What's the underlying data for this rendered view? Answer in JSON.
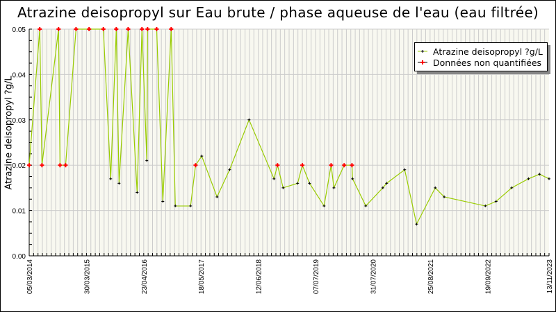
{
  "chart_data": {
    "type": "line",
    "title": "Atrazine deisopropyl sur Eau brute / phase aqueuse de l'eau (eau filtrée)",
    "ylabel": "Atrazine deisopropyl ?g/L",
    "xlabel": "",
    "x_unit": "days since 05/03/2014",
    "xlim": [
      0,
      3540
    ],
    "ylim": [
      0,
      0.05
    ],
    "y_ticks": [
      "0.00",
      "0.01",
      "0.02",
      "0.03",
      "0.04",
      "0.05"
    ],
    "x_ticks": [
      {
        "day": 0,
        "label": "05/03/2014"
      },
      {
        "day": 390,
        "label": "30/03/2015"
      },
      {
        "day": 780,
        "label": "23/04/2016"
      },
      {
        "day": 1170,
        "label": "18/05/2017"
      },
      {
        "day": 1560,
        "label": "12/06/2018"
      },
      {
        "day": 1950,
        "label": "07/07/2019"
      },
      {
        "day": 2340,
        "label": "31/07/2020"
      },
      {
        "day": 2730,
        "label": "25/08/2021"
      },
      {
        "day": 3120,
        "label": "19/09/2022"
      },
      {
        "day": 3540,
        "label": "13/11/2023"
      }
    ],
    "grid": true,
    "legend_position": "top-right",
    "legend": [
      "Atrazine deisopropyl ?g/L",
      "Données non quantifiées"
    ],
    "colors": {
      "line": "#99cc00",
      "quantified": "#000000",
      "non_quantified": "#ff0000",
      "plot_bg": "#f8f8f0",
      "grid": "#cccccc"
    },
    "points": [
      {
        "x": 0,
        "y": 0.02,
        "nq": true
      },
      {
        "x": 72,
        "y": 0.05,
        "nq": true
      },
      {
        "x": 87,
        "y": 0.02,
        "nq": true
      },
      {
        "x": 200,
        "y": 0.05,
        "nq": true
      },
      {
        "x": 210,
        "y": 0.02,
        "nq": true
      },
      {
        "x": 248,
        "y": 0.02,
        "nq": true
      },
      {
        "x": 319,
        "y": 0.05,
        "nq": true
      },
      {
        "x": 408,
        "y": 0.05,
        "nq": true
      },
      {
        "x": 505,
        "y": 0.05,
        "nq": true
      },
      {
        "x": 555,
        "y": 0.017,
        "nq": false
      },
      {
        "x": 593,
        "y": 0.05,
        "nq": true
      },
      {
        "x": 612,
        "y": 0.016,
        "nq": false
      },
      {
        "x": 674,
        "y": 0.05,
        "nq": true
      },
      {
        "x": 735,
        "y": 0.014,
        "nq": false
      },
      {
        "x": 768,
        "y": 0.05,
        "nq": true
      },
      {
        "x": 801,
        "y": 0.021,
        "nq": false
      },
      {
        "x": 806,
        "y": 0.05,
        "nq": true
      },
      {
        "x": 868,
        "y": 0.05,
        "nq": true
      },
      {
        "x": 910,
        "y": 0.012,
        "nq": false
      },
      {
        "x": 967,
        "y": 0.05,
        "nq": true
      },
      {
        "x": 995,
        "y": 0.011,
        "nq": false
      },
      {
        "x": 1099,
        "y": 0.011,
        "nq": false
      },
      {
        "x": 1133,
        "y": 0.02,
        "nq": true
      },
      {
        "x": 1175,
        "y": 0.022,
        "nq": false
      },
      {
        "x": 1279,
        "y": 0.013,
        "nq": false
      },
      {
        "x": 1365,
        "y": 0.019,
        "nq": false
      },
      {
        "x": 1497,
        "y": 0.03,
        "nq": false
      },
      {
        "x": 1667,
        "y": 0.017,
        "nq": false
      },
      {
        "x": 1691,
        "y": 0.02,
        "nq": true
      },
      {
        "x": 1729,
        "y": 0.015,
        "nq": false
      },
      {
        "x": 1828,
        "y": 0.016,
        "nq": false
      },
      {
        "x": 1860,
        "y": 0.02,
        "nq": true
      },
      {
        "x": 1909,
        "y": 0.016,
        "nq": false
      },
      {
        "x": 2008,
        "y": 0.011,
        "nq": false
      },
      {
        "x": 2056,
        "y": 0.02,
        "nq": true
      },
      {
        "x": 2075,
        "y": 0.015,
        "nq": false
      },
      {
        "x": 2145,
        "y": 0.02,
        "nq": true
      },
      {
        "x": 2198,
        "y": 0.02,
        "nq": true
      },
      {
        "x": 2202,
        "y": 0.017,
        "nq": false
      },
      {
        "x": 2292,
        "y": 0.011,
        "nq": false
      },
      {
        "x": 2408,
        "y": 0.015,
        "nq": false
      },
      {
        "x": 2434,
        "y": 0.016,
        "nq": false
      },
      {
        "x": 2557,
        "y": 0.019,
        "nq": false
      },
      {
        "x": 2638,
        "y": 0.007,
        "nq": false
      },
      {
        "x": 2765,
        "y": 0.015,
        "nq": false
      },
      {
        "x": 2826,
        "y": 0.013,
        "nq": false
      },
      {
        "x": 3106,
        "y": 0.011,
        "nq": false
      },
      {
        "x": 3179,
        "y": 0.012,
        "nq": false
      },
      {
        "x": 3286,
        "y": 0.015,
        "nq": false
      },
      {
        "x": 3400,
        "y": 0.017,
        "nq": false
      },
      {
        "x": 3475,
        "y": 0.018,
        "nq": false
      },
      {
        "x": 3540,
        "y": 0.017,
        "nq": false
      }
    ]
  }
}
